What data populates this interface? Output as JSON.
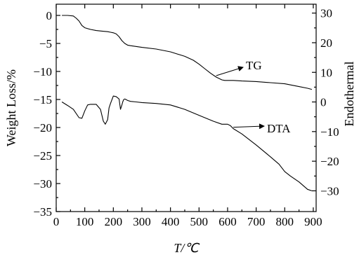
{
  "chart_data": {
    "type": "line",
    "xlabel": "T/℃",
    "ylabel": "Weight Loss/%",
    "y2label": "Endothermal",
    "xlim": [
      0,
      910
    ],
    "ylim": [
      -35,
      2
    ],
    "y2lim": [
      -37,
      33
    ],
    "xticks": [
      "0",
      "100",
      "200",
      "300",
      "400",
      "500",
      "600",
      "700",
      "800",
      "900"
    ],
    "yticks": [
      "0",
      "-5",
      "-10",
      "-15",
      "-20",
      "-25",
      "-30",
      "-35"
    ],
    "y2ticks": [
      "30",
      "20",
      "10",
      "0",
      "-10",
      "-20",
      "-30"
    ],
    "grid": false,
    "legend": "none",
    "series": [
      {
        "name": "TG",
        "axis": "left",
        "x": [
          20,
          40,
          60,
          70,
          80,
          90,
          100,
          120,
          140,
          160,
          180,
          190,
          200,
          210,
          220,
          230,
          240,
          250,
          260,
          300,
          350,
          400,
          450,
          480,
          500,
          520,
          540,
          560,
          580,
          590,
          600,
          620,
          650,
          700,
          750,
          800,
          850,
          880,
          895
        ],
        "y": [
          0,
          0,
          -0.1,
          -0.5,
          -1.0,
          -1.8,
          -2.2,
          -2.5,
          -2.7,
          -2.8,
          -2.9,
          -3.0,
          -3.1,
          -3.3,
          -3.8,
          -4.5,
          -5.0,
          -5.3,
          -5.4,
          -5.7,
          -6.0,
          -6.5,
          -7.3,
          -8.0,
          -8.7,
          -9.5,
          -10.3,
          -11.0,
          -11.5,
          -11.6,
          -11.6,
          -11.6,
          -11.7,
          -11.8,
          -12.0,
          -12.2,
          -12.7,
          -13.0,
          -13.2
        ]
      },
      {
        "name": "DTA",
        "axis": "right",
        "x": [
          20,
          40,
          60,
          80,
          90,
          100,
          110,
          120,
          140,
          155,
          165,
          172,
          180,
          185,
          190,
          200,
          210,
          220,
          225,
          230,
          233,
          236,
          240,
          245,
          250,
          260,
          280,
          300,
          350,
          400,
          450,
          500,
          550,
          580,
          600,
          610,
          620,
          650,
          700,
          750,
          780,
          800,
          820,
          850,
          880,
          895
        ],
        "y": [
          0,
          -1.2,
          -2.5,
          -5.3,
          -5.5,
          -3,
          -1,
          -0.8,
          -0.8,
          -2.5,
          -6.5,
          -7.5,
          -6,
          -2,
          -0.5,
          2,
          1.8,
          1,
          -2.5,
          -1,
          0,
          0.8,
          1,
          0.8,
          0.5,
          0.2,
          0,
          -0.2,
          -0.5,
          -1,
          -2.5,
          -4.5,
          -6.5,
          -7.5,
          -7.5,
          -8,
          -9,
          -10.8,
          -14.5,
          -18.5,
          -21,
          -23.5,
          -25,
          -27,
          -29.5,
          -30
        ]
      }
    ],
    "annotations": [
      {
        "text": "TG",
        "series": "TG"
      },
      {
        "text": "DTA",
        "series": "DTA"
      }
    ]
  }
}
